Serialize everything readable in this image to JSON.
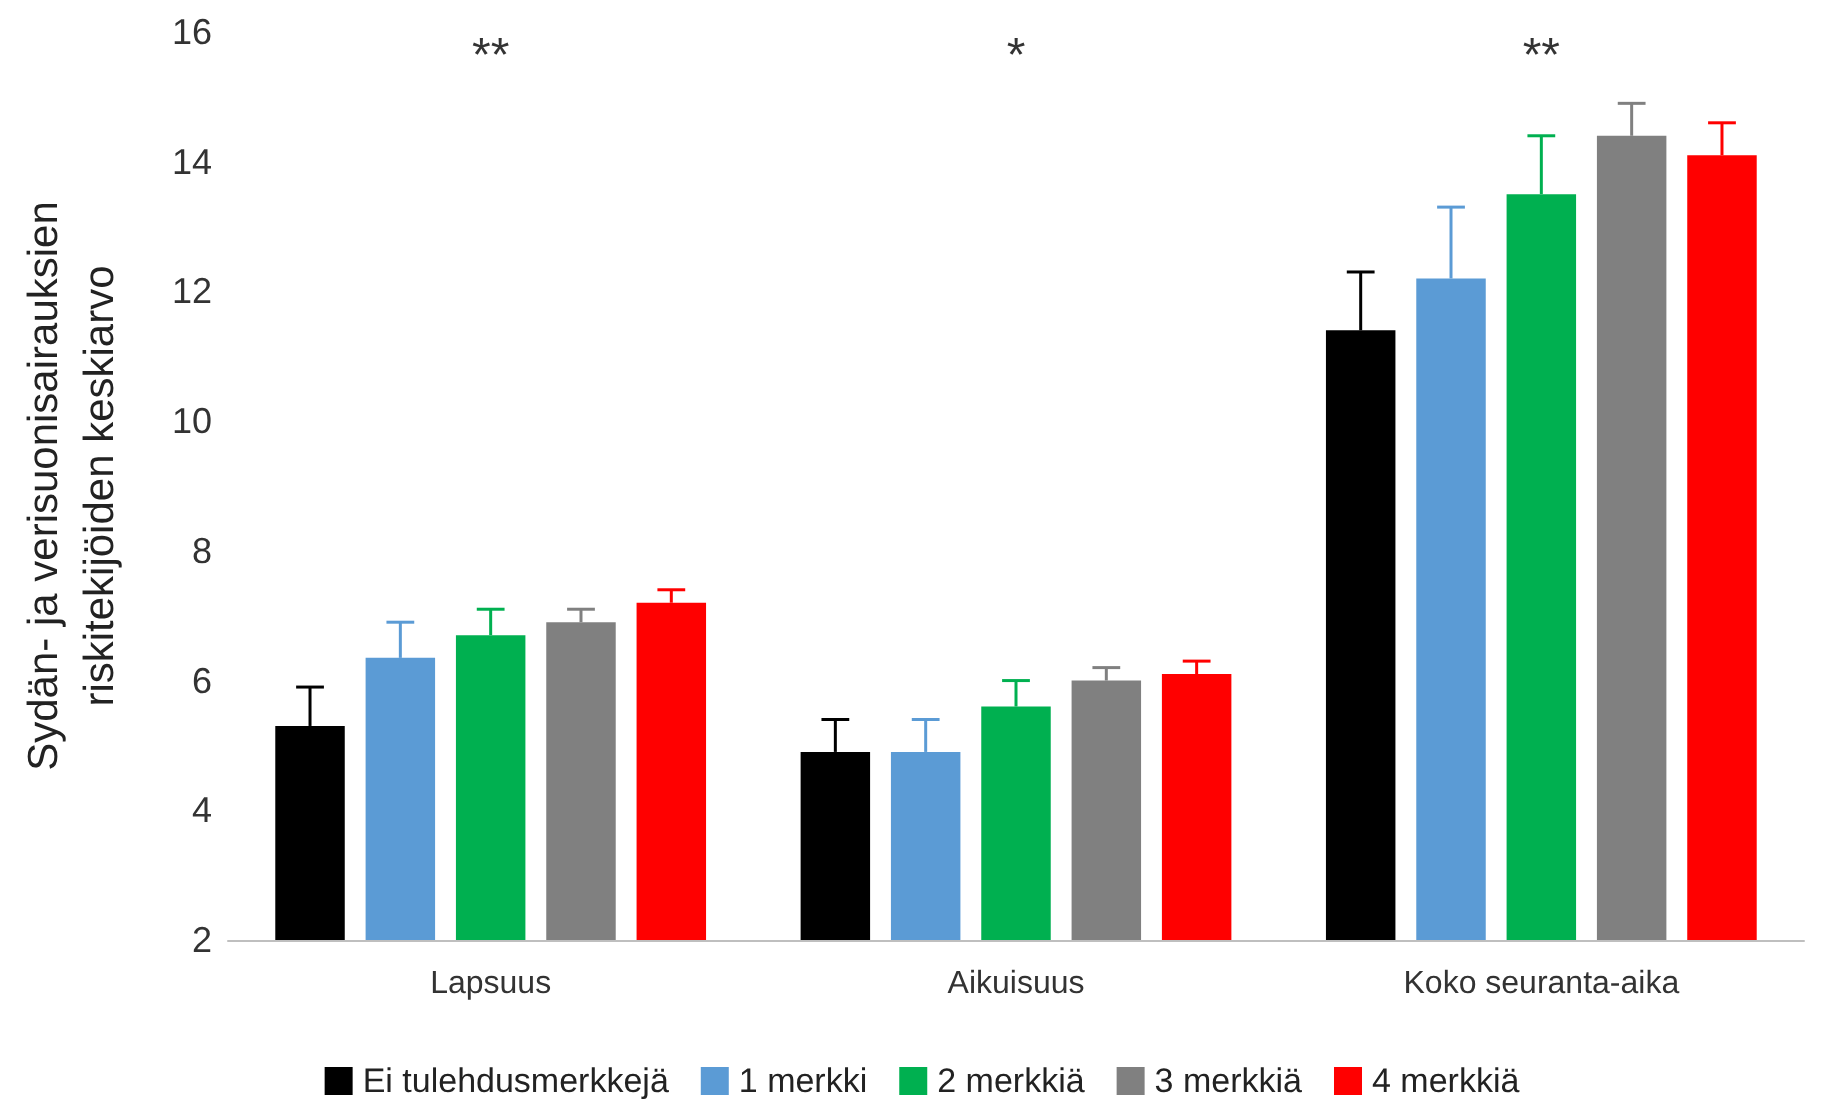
{
  "chart_data": {
    "type": "bar",
    "ylabel": "Sydän- ja verisuonisairauksien\nriskitekijöiden keskiarvo",
    "categories": [
      "Lapsuus",
      "Aikuisuus",
      "Koko seuranta-aika"
    ],
    "series": [
      {
        "name": "Ei tulehdusmerkkejä",
        "color": "#000000",
        "values": [
          5.3,
          4.9,
          11.4
        ],
        "errors": [
          [
            5.3,
            5.9
          ],
          [
            4.9,
            5.4
          ],
          [
            11.4,
            12.3
          ]
        ]
      },
      {
        "name": "1 merkki",
        "color": "#5b9bd5",
        "values": [
          6.35,
          4.9,
          12.2
        ],
        "errors": [
          [
            6.35,
            6.9
          ],
          [
            4.9,
            5.4
          ],
          [
            12.2,
            13.3
          ]
        ]
      },
      {
        "name": "2 merkkiä",
        "color": "#00b050",
        "values": [
          6.7,
          5.6,
          13.5
        ],
        "errors": [
          [
            6.7,
            7.1
          ],
          [
            5.6,
            6.0
          ],
          [
            13.5,
            14.4
          ]
        ]
      },
      {
        "name": "3 merkkiä",
        "color": "#808080",
        "values": [
          6.9,
          6.0,
          14.4
        ],
        "errors": [
          [
            6.9,
            7.1
          ],
          [
            6.0,
            6.2
          ],
          [
            14.4,
            14.9
          ]
        ]
      },
      {
        "name": "4 merkkiä",
        "color": "#ff0000",
        "values": [
          7.2,
          6.1,
          14.1
        ],
        "errors": [
          [
            7.2,
            7.4
          ],
          [
            6.1,
            6.3
          ],
          [
            14.1,
            14.6
          ]
        ]
      }
    ],
    "ylim": [
      2,
      16
    ],
    "yticks": [
      2,
      4,
      6,
      8,
      10,
      12,
      14,
      16
    ],
    "grid": false,
    "legend": "bottom",
    "annotations": [
      "**",
      "*",
      "**"
    ]
  }
}
